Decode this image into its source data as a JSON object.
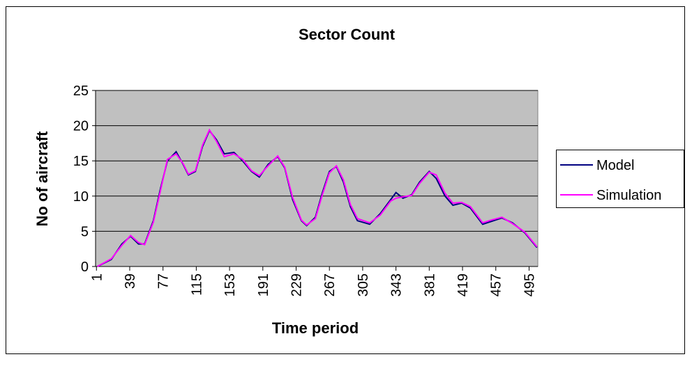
{
  "chart_data": {
    "type": "line",
    "title": "Sector Count",
    "x_label": "Time period",
    "y_label": "No of aircraft",
    "x": [
      2,
      18,
      30,
      40,
      49,
      56,
      66,
      74,
      82,
      92,
      100,
      106,
      114,
      122,
      130,
      138,
      147,
      158,
      168,
      178,
      187,
      197,
      208,
      216,
      225,
      235,
      241,
      251,
      259,
      267,
      275,
      283,
      291,
      299,
      313,
      325,
      337,
      343,
      351,
      361,
      370,
      381,
      389,
      399,
      408,
      418,
      428,
      442,
      452,
      464,
      476,
      490,
      504
    ],
    "series": [
      {
        "name": "Model",
        "color": "#000080",
        "values": [
          0,
          1,
          3.2,
          4.3,
          3.2,
          3.2,
          6.5,
          11,
          15,
          16.3,
          14.5,
          13,
          13.5,
          17,
          19.3,
          18,
          16,
          16.2,
          15,
          13.5,
          12.7,
          14.5,
          15.6,
          14,
          9.5,
          6.5,
          5.8,
          7,
          10.5,
          13.5,
          14.2,
          12,
          8.5,
          6.5,
          6,
          7.5,
          9.5,
          10.5,
          9.7,
          10.2,
          12,
          13.5,
          12.5,
          10,
          8.7,
          9,
          8.3,
          6,
          6.4,
          6.9,
          6.2,
          4.8,
          2.7
        ]
      },
      {
        "name": "Simulation",
        "color": "#ff00ff",
        "values": [
          0,
          1.1,
          3,
          4.4,
          3.4,
          3.1,
          6.3,
          10.7,
          15.2,
          16,
          14.6,
          13.1,
          13.6,
          17.2,
          19.4,
          17.8,
          15.6,
          16,
          15.2,
          13.6,
          12.9,
          14.3,
          15.7,
          14.1,
          9.8,
          6.6,
          5.9,
          6.8,
          10.2,
          13.3,
          14.3,
          12.3,
          8.8,
          6.8,
          6.2,
          7.3,
          9.3,
          9.7,
          9.9,
          10.1,
          11.8,
          13.4,
          13,
          10.4,
          9,
          9.1,
          8.5,
          6.2,
          6.6,
          7,
          6.1,
          4.9,
          2.8
        ]
      }
    ],
    "xlim": [
      0,
      505
    ],
    "xticks": [
      1,
      39,
      77,
      115,
      153,
      191,
      229,
      267,
      305,
      343,
      381,
      419,
      457,
      495
    ],
    "ylim": [
      0,
      25
    ],
    "yticks": [
      0,
      5,
      10,
      15,
      20,
      25
    ],
    "grid": true,
    "legend": "right",
    "plot_background": "#c0c0c0"
  }
}
